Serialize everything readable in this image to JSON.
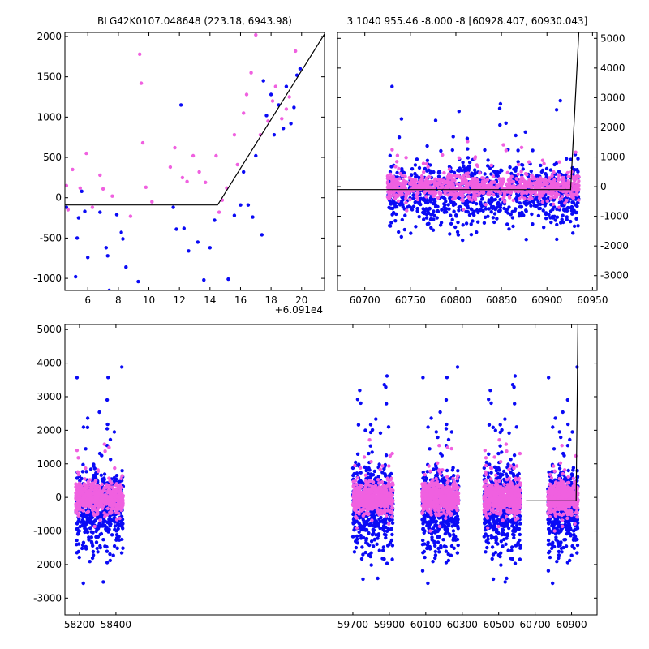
{
  "colors": {
    "series_a": "#0a0af5",
    "series_b": "#f060e0",
    "model": "#000000"
  },
  "chart_data": [
    {
      "type": "scatter",
      "title": "BLG42K0107.048648 (223.18, 6943.98)",
      "offset_label": "+6.091e4",
      "xlim": [
        4.5,
        21.5
      ],
      "ylim": [
        -1150,
        2050
      ],
      "xticks": [
        6,
        8,
        10,
        12,
        14,
        16,
        18,
        20
      ],
      "yticks": [
        -1000,
        -500,
        0,
        500,
        1000,
        1500,
        2000
      ],
      "model_line": {
        "x": [
          4.5,
          14.5,
          21.5
        ],
        "y": [
          -90,
          -90,
          2030
        ]
      },
      "series": [
        {
          "color_key": "series_a",
          "points": [
            [
              4.6,
              -120
            ],
            [
              5.2,
              -980
            ],
            [
              5.3,
              -500
            ],
            [
              5.4,
              -250
            ],
            [
              5.6,
              80
            ],
            [
              5.8,
              -170
            ],
            [
              6.0,
              -740
            ],
            [
              6.8,
              -180
            ],
            [
              7.2,
              -620
            ],
            [
              7.3,
              -720
            ],
            [
              7.4,
              -1150
            ],
            [
              7.9,
              -210
            ],
            [
              8.2,
              -430
            ],
            [
              8.3,
              -510
            ],
            [
              8.5,
              -860
            ],
            [
              9.3,
              -1040
            ],
            [
              11.6,
              -120
            ],
            [
              11.8,
              -390
            ],
            [
              12.1,
              1150
            ],
            [
              12.3,
              -380
            ],
            [
              12.6,
              -660
            ],
            [
              13.2,
              -550
            ],
            [
              13.6,
              -1020
            ],
            [
              14.0,
              -620
            ],
            [
              14.3,
              -280
            ],
            [
              15.2,
              -1010
            ],
            [
              15.6,
              -220
            ],
            [
              16.0,
              -90
            ],
            [
              16.2,
              320
            ],
            [
              16.5,
              -90
            ],
            [
              16.8,
              -240
            ],
            [
              17.0,
              520
            ],
            [
              17.4,
              -460
            ],
            [
              17.5,
              1450
            ],
            [
              17.7,
              1020
            ],
            [
              18.0,
              1280
            ],
            [
              18.2,
              780
            ],
            [
              18.5,
              1150
            ],
            [
              18.8,
              860
            ],
            [
              19.0,
              1380
            ],
            [
              19.3,
              920
            ],
            [
              19.5,
              1120
            ],
            [
              19.7,
              1520
            ],
            [
              19.9,
              1600
            ]
          ]
        },
        {
          "color_key": "series_b",
          "points": [
            [
              4.6,
              150
            ],
            [
              4.7,
              -150
            ],
            [
              5.0,
              350
            ],
            [
              5.5,
              120
            ],
            [
              5.9,
              550
            ],
            [
              6.3,
              -120
            ],
            [
              6.8,
              280
            ],
            [
              7.0,
              110
            ],
            [
              7.6,
              20
            ],
            [
              8.8,
              -230
            ],
            [
              9.4,
              1780
            ],
            [
              9.5,
              1420
            ],
            [
              9.6,
              680
            ],
            [
              9.8,
              130
            ],
            [
              10.2,
              -50
            ],
            [
              11.4,
              380
            ],
            [
              11.7,
              620
            ],
            [
              12.2,
              250
            ],
            [
              12.5,
              200
            ],
            [
              12.9,
              520
            ],
            [
              13.3,
              320
            ],
            [
              13.7,
              190
            ],
            [
              14.4,
              520
            ],
            [
              14.6,
              -180
            ],
            [
              14.8,
              -30
            ],
            [
              15.1,
              120
            ],
            [
              15.6,
              780
            ],
            [
              15.8,
              410
            ],
            [
              16.2,
              1050
            ],
            [
              16.4,
              1280
            ],
            [
              16.7,
              1550
            ],
            [
              17.0,
              2020
            ],
            [
              17.3,
              780
            ],
            [
              17.8,
              950
            ],
            [
              18.1,
              1200
            ],
            [
              18.3,
              1380
            ],
            [
              18.7,
              980
            ],
            [
              19.0,
              1100
            ],
            [
              19.2,
              1250
            ],
            [
              19.6,
              1820
            ]
          ]
        }
      ]
    },
    {
      "type": "scatter",
      "title": "3 1040 955.46 -8.000 -8 [60928.407, 60930.043]",
      "xlim": [
        60670,
        60955
      ],
      "ylim": [
        -3500,
        5200
      ],
      "xticks": [
        60700,
        60750,
        60800,
        60850,
        60900,
        60950
      ],
      "yticks": [
        -3000,
        -2000,
        -1000,
        0,
        1000,
        2000,
        3000,
        4000,
        5000
      ],
      "model_line": {
        "x": [
          60670,
          60926,
          60935
        ],
        "y": [
          -100,
          -100,
          5200
        ]
      },
      "segments": [
        [
          60725,
          60935
        ]
      ],
      "series": [
        {
          "color_key": "series_a",
          "spread": 1800
        },
        {
          "color_key": "series_b",
          "spread": 800
        }
      ]
    },
    {
      "type": "scatter",
      "xlim": [
        58120,
        61040
      ],
      "ylim": [
        -3500,
        5150
      ],
      "xticks": [
        58200,
        58400,
        59700,
        59900,
        60100,
        60300,
        60500,
        60700,
        60900
      ],
      "yticks": [
        -3000,
        -2000,
        -1000,
        0,
        1000,
        2000,
        3000,
        4000,
        5000
      ],
      "break_at": 58520,
      "model_line": {
        "x": [
          60650,
          60925,
          60935
        ],
        "y": [
          -100,
          -100,
          5150
        ]
      },
      "segments": [
        [
          58180,
          58440
        ],
        [
          59700,
          59920
        ],
        [
          60080,
          60280
        ],
        [
          60420,
          60620
        ],
        [
          60770,
          60935
        ]
      ],
      "series": [
        {
          "color_key": "series_a",
          "spread": 1900
        },
        {
          "color_key": "series_b",
          "spread": 900
        }
      ]
    }
  ]
}
